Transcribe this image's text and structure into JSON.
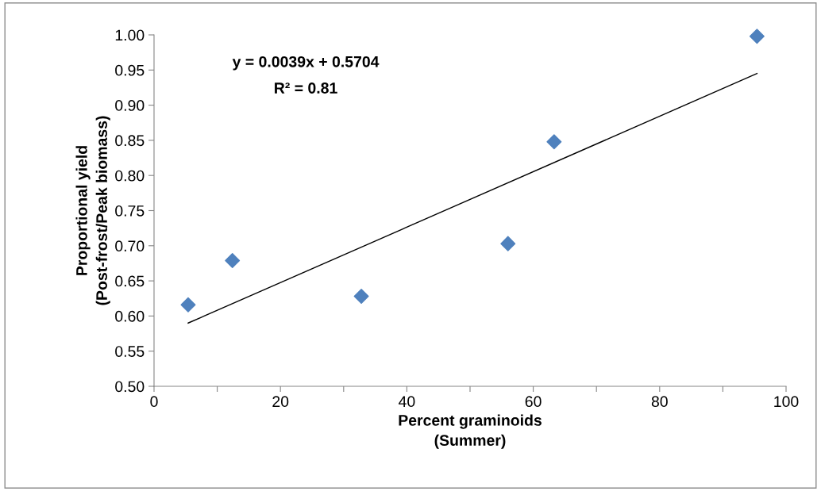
{
  "chart_data": {
    "type": "scatter",
    "xlabel": "Percent graminoids\n(Summer)",
    "ylabel": "Proportional yield\n(Post-frost/Peak biomass)",
    "x": [
      5.4,
      12.4,
      32.8,
      56.0,
      63.3,
      95.4
    ],
    "series": [
      {
        "color": "#4f81bd",
        "marker": "diamond",
        "values": [
          0.616,
          0.679,
          0.628,
          0.703,
          0.848,
          0.998
        ]
      },
      {
        "type": "line",
        "color": "#000000",
        "x": [
          5.4,
          95.4
        ],
        "values": [
          0.59,
          0.945
        ]
      }
    ],
    "annotations": [
      "y = 0.0039x + 0.5704",
      "R² = 0.81"
    ],
    "xlim": [
      0,
      100
    ],
    "xticks": [
      0,
      {
        "value": 10,
        "label": null
      },
      20,
      {
        "value": 30,
        "label": null
      },
      40,
      {
        "value": 50,
        "label": null
      },
      60,
      {
        "value": 70,
        "label": null
      },
      80,
      {
        "value": 90,
        "label": null
      },
      100
    ],
    "ylim": [
      0.5,
      1.0
    ],
    "yticks": [
      {
        "value": 0.5,
        "label": "0.50"
      },
      {
        "value": 0.55,
        "label": "0.55"
      },
      {
        "value": 0.6,
        "label": "0.60"
      },
      {
        "value": 0.65,
        "label": "0.65"
      },
      {
        "value": 0.7,
        "label": "0.70"
      },
      {
        "value": 0.75,
        "label": "0.75"
      },
      {
        "value": 0.8,
        "label": "0.80"
      },
      {
        "value": 0.85,
        "label": "0.85"
      },
      {
        "value": 0.9,
        "label": "0.90"
      },
      {
        "value": 0.95,
        "label": "0.95"
      },
      {
        "value": 1.0,
        "label": "1.00"
      }
    ],
    "grid": false
  }
}
